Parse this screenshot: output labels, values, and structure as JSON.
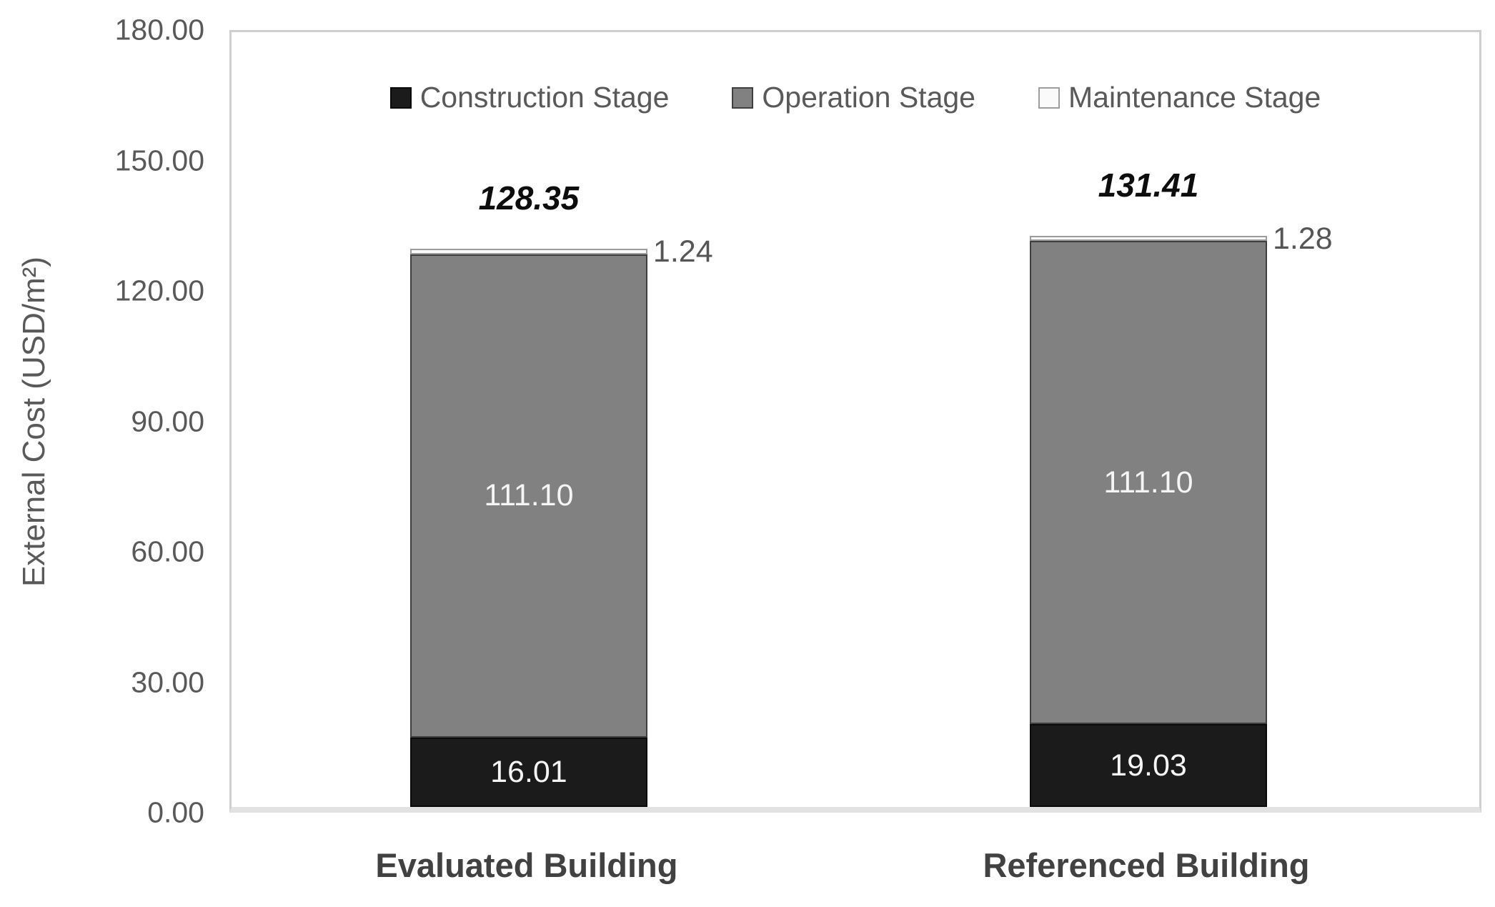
{
  "chart_data": {
    "type": "bar",
    "stacked": true,
    "title": "",
    "xlabel": "",
    "ylabel": "External Cost (USD/m²)",
    "ylim": [
      0,
      180
    ],
    "ytick_step": 30,
    "ytick_labels": [
      "180.00",
      "150.00",
      "120.00",
      "90.00",
      "60.00",
      "30.00",
      "0.00"
    ],
    "grid": false,
    "legend_position": "top-center",
    "categories": [
      "Evaluated Building",
      "Referenced Building"
    ],
    "series": [
      {
        "name": "Construction Stage",
        "values": [
          16.01,
          19.03
        ],
        "labels": [
          "16.01",
          "19.03"
        ],
        "label_placement": "inside",
        "fill": "#1b1b1b",
        "border": "#0a0a0a",
        "label_color": "#f5f5f5"
      },
      {
        "name": "Operation Stage",
        "values": [
          111.1,
          111.1
        ],
        "labels": [
          "111.10",
          "111.10"
        ],
        "label_placement": "inside",
        "fill": "#818181",
        "border": "#3f3f3f",
        "label_color": "#f5f5f5"
      },
      {
        "name": "Maintenance Stage",
        "values": [
          1.24,
          1.28
        ],
        "labels": [
          "1.24",
          "1.28"
        ],
        "label_placement": "outside-right",
        "fill": "#fafafa",
        "border": "#9c9c9c",
        "label_color": "#565656"
      }
    ],
    "totals": [
      "128.35",
      "131.41"
    ]
  },
  "colors": {
    "axis_text": "#595959",
    "frame_border": "#cfcfcf",
    "baseline": "#e2e2e2",
    "total_text": "#0d0d0d",
    "category_text": "#414141",
    "background": "#ffffff"
  }
}
